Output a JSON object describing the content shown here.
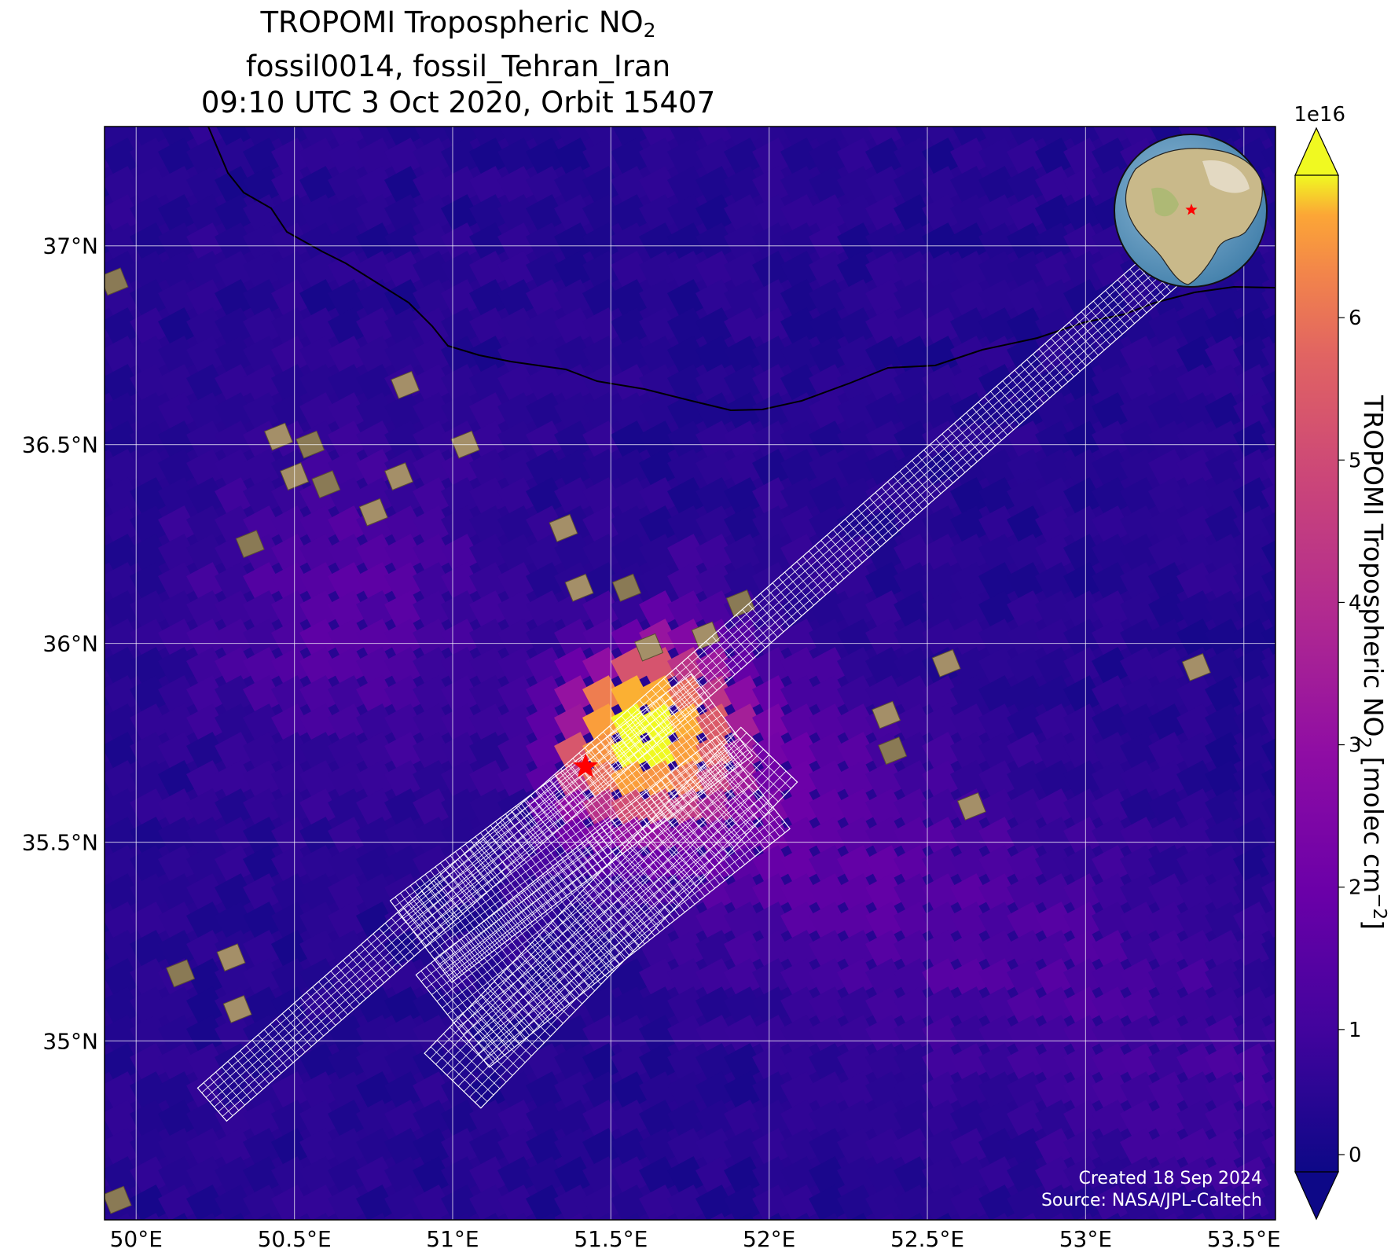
{
  "title": {
    "line1_main": "TROPOMI Tropospheric NO",
    "line1_sub": "2",
    "line2": "fossil0014, fossil_Tehran_Iran",
    "line3": "09:10 UTC 3 Oct 2020, Orbit 15407"
  },
  "map": {
    "lon_range": [
      49.9,
      53.6
    ],
    "lat_range": [
      34.55,
      37.3
    ],
    "lon_ticks": [
      "50°E",
      "50.5°E",
      "51°E",
      "51.5°E",
      "52°E",
      "52.5°E",
      "53°E",
      "53.5°E"
    ],
    "lat_ticks": [
      "37°N",
      "36.5°N",
      "36°N",
      "35.5°N",
      "35°N"
    ],
    "site_marker": {
      "lon": 51.42,
      "lat": 35.69,
      "color": "#ff0000",
      "icon": "red-star-icon"
    },
    "background_color": "#280592",
    "coastline_color": "#000000",
    "target_grid_color": "#ffffff"
  },
  "colorbar": {
    "label_main": "TROPOMI Tropospheric NO",
    "label_sub": "2",
    "label_units": " [molec cm",
    "label_exp": "−2",
    "label_close": "]",
    "multiplier": "1e16",
    "range": [
      0,
      7
    ],
    "ticks": [
      "0",
      "1",
      "2",
      "3",
      "4",
      "5",
      "6"
    ],
    "colormap": "plasma",
    "extend": "both"
  },
  "credits": {
    "created": "Created 18 Sep 2024",
    "source": "Source: NASA/JPL-Caltech"
  },
  "inset_globe": {
    "icon": "globe-icon",
    "marker_color": "#ff0000"
  }
}
